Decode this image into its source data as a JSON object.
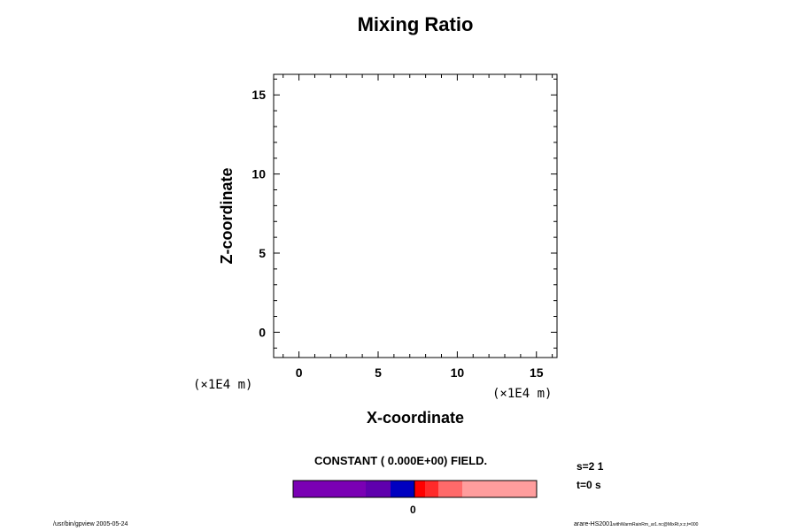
{
  "chart_data": {
    "type": "heatmap",
    "title": "Mixing Ratio",
    "xlabel": "X-coordinate",
    "ylabel": "Z-coordinate",
    "x_unit": "(×1E4 m)",
    "y_unit": "(×1E4 m)",
    "xlim": [
      -1.6,
      16.3
    ],
    "ylim": [
      -1.6,
      16.3
    ],
    "x_ticks": [
      0,
      5,
      10,
      15
    ],
    "y_ticks": [
      0,
      5,
      10,
      15
    ],
    "x_ticks_labels": [
      "0",
      "5",
      "10",
      "15"
    ],
    "y_ticks_labels": [
      "0",
      "5",
      "10",
      "15"
    ],
    "minor_tick_step": 1,
    "grid": false,
    "field_value": 0,
    "field_note": "CONSTANT ( 0.000E+00) FIELD.",
    "colorbar": {
      "tick_label": "0",
      "segments": [
        {
          "color": "#7a00b4",
          "weight": 82
        },
        {
          "color": "#5f00ad",
          "weight": 28
        },
        {
          "color": "#0000c0",
          "weight": 27
        },
        {
          "color": "#ff0000",
          "weight": 12
        },
        {
          "color": "#ff2a2a",
          "weight": 15
        },
        {
          "color": "#ff6a6a",
          "weight": 27
        },
        {
          "color": "#ff9d9d",
          "weight": 84
        }
      ]
    }
  },
  "info": {
    "s_label": "s=2 1",
    "t_label": "t=0 s"
  },
  "footer": {
    "left": "/usr/bin/gpview 2005-05-24",
    "right_main": "arare-HS2001",
    "right_sub": "withWarmRainRm_ar1.nc@MixRt,x:z,t=000"
  }
}
